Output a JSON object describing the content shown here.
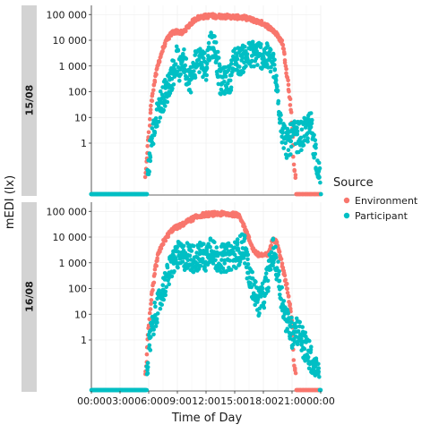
{
  "chart_data": {
    "type": "scatter",
    "title": "",
    "xlabel": "Time of Day",
    "ylabel": "mEDI (lx)",
    "x_unit": "hours",
    "xlim": [
      0,
      24
    ],
    "x_tick_values": [
      0,
      3,
      6,
      9,
      12,
      15,
      18,
      21,
      24
    ],
    "x_tick_labels": [
      "00:00",
      "03:00",
      "06:00",
      "09:00",
      "12:00",
      "15:00",
      "18:00",
      "21:00",
      "00:00"
    ],
    "y_scale": "symlog",
    "ylim": [
      0,
      140000
    ],
    "y_tick_values": [
      1,
      10,
      100,
      1000,
      10000,
      100000
    ],
    "y_tick_labels": [
      "1",
      "10",
      "100",
      "1 000",
      "10 000",
      "100 000"
    ],
    "grid": true,
    "legend": {
      "title": "Source",
      "placement": "right",
      "entries": [
        "Environment",
        "Participant"
      ]
    },
    "series_colors": {
      "Environment": "#F8766D",
      "Participant": "#00BFC4"
    },
    "facets": [
      {
        "label": "15/08",
        "series": [
          {
            "name": "Environment",
            "points": [
              [
                0,
                0
              ],
              [
                3,
                0
              ],
              [
                5.6,
                0
              ],
              [
                5.8,
                0.4
              ],
              [
                6.0,
                2
              ],
              [
                6.2,
                20
              ],
              [
                6.5,
                150
              ],
              [
                7.0,
                1200
              ],
              [
                7.5,
                5000
              ],
              [
                8.0,
                12000
              ],
              [
                8.5,
                20000
              ],
              [
                9.0,
                22000
              ],
              [
                9.5,
                19000
              ],
              [
                10.0,
                30000
              ],
              [
                10.5,
                50000
              ],
              [
                11.0,
                70000
              ],
              [
                11.5,
                80000
              ],
              [
                12.0,
                85000
              ],
              [
                12.5,
                90000
              ],
              [
                13.0,
                85000
              ],
              [
                14.0,
                85000
              ],
              [
                15.0,
                80000
              ],
              [
                16.0,
                75000
              ],
              [
                17.0,
                60000
              ],
              [
                18.0,
                45000
              ],
              [
                19.0,
                25000
              ],
              [
                19.5,
                15000
              ],
              [
                20.0,
                8000
              ],
              [
                20.3,
                1500
              ],
              [
                20.6,
                200
              ],
              [
                20.9,
                20
              ],
              [
                21.1,
                1
              ],
              [
                21.2,
                0.2
              ],
              [
                21.4,
                0
              ],
              [
                24,
                0
              ]
            ]
          },
          {
            "name": "Participant",
            "points": [
              [
                0,
                0
              ],
              [
                5.8,
                0
              ],
              [
                6.2,
                1
              ],
              [
                6.5,
                3
              ],
              [
                7.0,
                20
              ],
              [
                7.5,
                60
              ],
              [
                8.0,
                150
              ],
              [
                8.5,
                500
              ],
              [
                9.0,
                2000
              ],
              [
                9.3,
                400
              ],
              [
                9.5,
                3000
              ],
              [
                10.0,
                500
              ],
              [
                10.5,
                300
              ],
              [
                11.0,
                2000
              ],
              [
                11.5,
                1500
              ],
              [
                12.0,
                1000
              ],
              [
                12.5,
                8000
              ],
              [
                13.0,
                5000
              ],
              [
                13.5,
                200
              ],
              [
                14.0,
                300
              ],
              [
                14.5,
                300
              ],
              [
                15.0,
                2000
              ],
              [
                15.5,
                1500
              ],
              [
                16.0,
                2000
              ],
              [
                16.5,
                2500
              ],
              [
                17.0,
                3000
              ],
              [
                17.5,
                3000
              ],
              [
                18.0,
                2500
              ],
              [
                18.5,
                2000
              ],
              [
                19.0,
                1500
              ],
              [
                19.5,
                80
              ],
              [
                20.0,
                3
              ],
              [
                20.5,
                1
              ],
              [
                21.0,
                2
              ],
              [
                22.0,
                2
              ],
              [
                23.0,
                5
              ],
              [
                24,
                0
              ]
            ]
          }
        ]
      },
      {
        "label": "16/08",
        "series": [
          {
            "name": "Environment",
            "points": [
              [
                0,
                0
              ],
              [
                3,
                0
              ],
              [
                5.6,
                0
              ],
              [
                5.8,
                0.3
              ],
              [
                6.0,
                3
              ],
              [
                6.3,
                50
              ],
              [
                6.7,
                600
              ],
              [
                7.0,
                2000
              ],
              [
                7.5,
                6000
              ],
              [
                8.0,
                12000
              ],
              [
                8.5,
                20000
              ],
              [
                9.0,
                25000
              ],
              [
                9.5,
                30000
              ],
              [
                10.0,
                40000
              ],
              [
                10.5,
                50000
              ],
              [
                11.0,
                60000
              ],
              [
                11.5,
                70000
              ],
              [
                12.0,
                75000
              ],
              [
                13.0,
                80000
              ],
              [
                14.0,
                80000
              ],
              [
                15.0,
                75000
              ],
              [
                15.5,
                70000
              ],
              [
                16.0,
                25000
              ],
              [
                16.5,
                8000
              ],
              [
                17.0,
                3000
              ],
              [
                17.5,
                2000
              ],
              [
                18.0,
                2000
              ],
              [
                18.5,
                2000
              ],
              [
                19.0,
                9000
              ],
              [
                19.5,
                5000
              ],
              [
                20.0,
                800
              ],
              [
                20.5,
                100
              ],
              [
                20.8,
                20
              ],
              [
                21.1,
                2
              ],
              [
                21.2,
                0.2
              ],
              [
                21.4,
                0
              ],
              [
                24,
                0
              ]
            ]
          },
          {
            "name": "Participant",
            "points": [
              [
                0,
                0
              ],
              [
                5.8,
                0
              ],
              [
                6.0,
                0.5
              ],
              [
                6.3,
                2
              ],
              [
                6.6,
                8
              ],
              [
                7.0,
                20
              ],
              [
                7.5,
                100
              ],
              [
                8.0,
                300
              ],
              [
                8.5,
                1000
              ],
              [
                9.0,
                2000
              ],
              [
                9.5,
                1500
              ],
              [
                10.0,
                2000
              ],
              [
                10.5,
                1500
              ],
              [
                11.0,
                1500
              ],
              [
                11.5,
                2000
              ],
              [
                12.0,
                1500
              ],
              [
                12.5,
                5000
              ],
              [
                13.0,
                1500
              ],
              [
                14.0,
                1500
              ],
              [
                15.0,
                2000
              ],
              [
                15.5,
                3000
              ],
              [
                16.0,
                5000
              ],
              [
                16.5,
                300
              ],
              [
                17.0,
                100
              ],
              [
                17.5,
                30
              ],
              [
                18.0,
                50
              ],
              [
                18.5,
                300
              ],
              [
                19.0,
                3000
              ],
              [
                19.5,
                500
              ],
              [
                20.0,
                30
              ],
              [
                20.5,
                5
              ],
              [
                21.0,
                2
              ],
              [
                21.5,
                3
              ],
              [
                24,
                0
              ]
            ]
          }
        ]
      }
    ]
  }
}
